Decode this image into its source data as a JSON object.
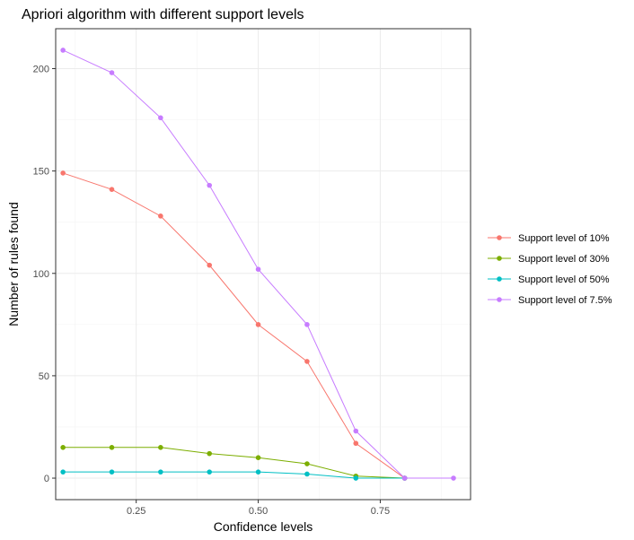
{
  "chart_data": {
    "type": "line",
    "title": "Apriori algorithm with different support levels",
    "xlabel": "Confidence levels",
    "ylabel": "Number of rules found",
    "xlim": [
      0.085,
      0.935
    ],
    "ylim": [
      -10.5,
      219.5
    ],
    "x_ticks": [
      0.25,
      0.5,
      0.75
    ],
    "x_tick_labels": [
      "0.25",
      "0.50",
      "0.75"
    ],
    "y_ticks": [
      0,
      50,
      100,
      150,
      200
    ],
    "y_tick_labels": [
      "0",
      "50",
      "100",
      "150",
      "200"
    ],
    "grid": true,
    "legend_position": "right",
    "x": [
      0.1,
      0.2,
      0.3,
      0.4,
      0.5,
      0.6,
      0.7,
      0.8,
      0.9
    ],
    "series": [
      {
        "name": "Support level of 10%",
        "color": "#F8766D",
        "values": [
          149,
          141,
          128,
          104,
          75,
          57,
          17,
          0,
          null
        ]
      },
      {
        "name": "Support level of 30%",
        "color": "#7CAE00",
        "values": [
          15,
          15,
          15,
          12,
          10,
          7,
          1,
          0,
          null
        ]
      },
      {
        "name": "Support level of 50%",
        "color": "#00BFC4",
        "values": [
          3,
          3,
          3,
          3,
          3,
          2,
          0,
          0,
          null
        ]
      },
      {
        "name": "Support level of 7.5%",
        "color": "#C77CFF",
        "values": [
          209,
          198,
          176,
          143,
          102,
          75,
          23,
          0,
          0
        ]
      }
    ]
  }
}
